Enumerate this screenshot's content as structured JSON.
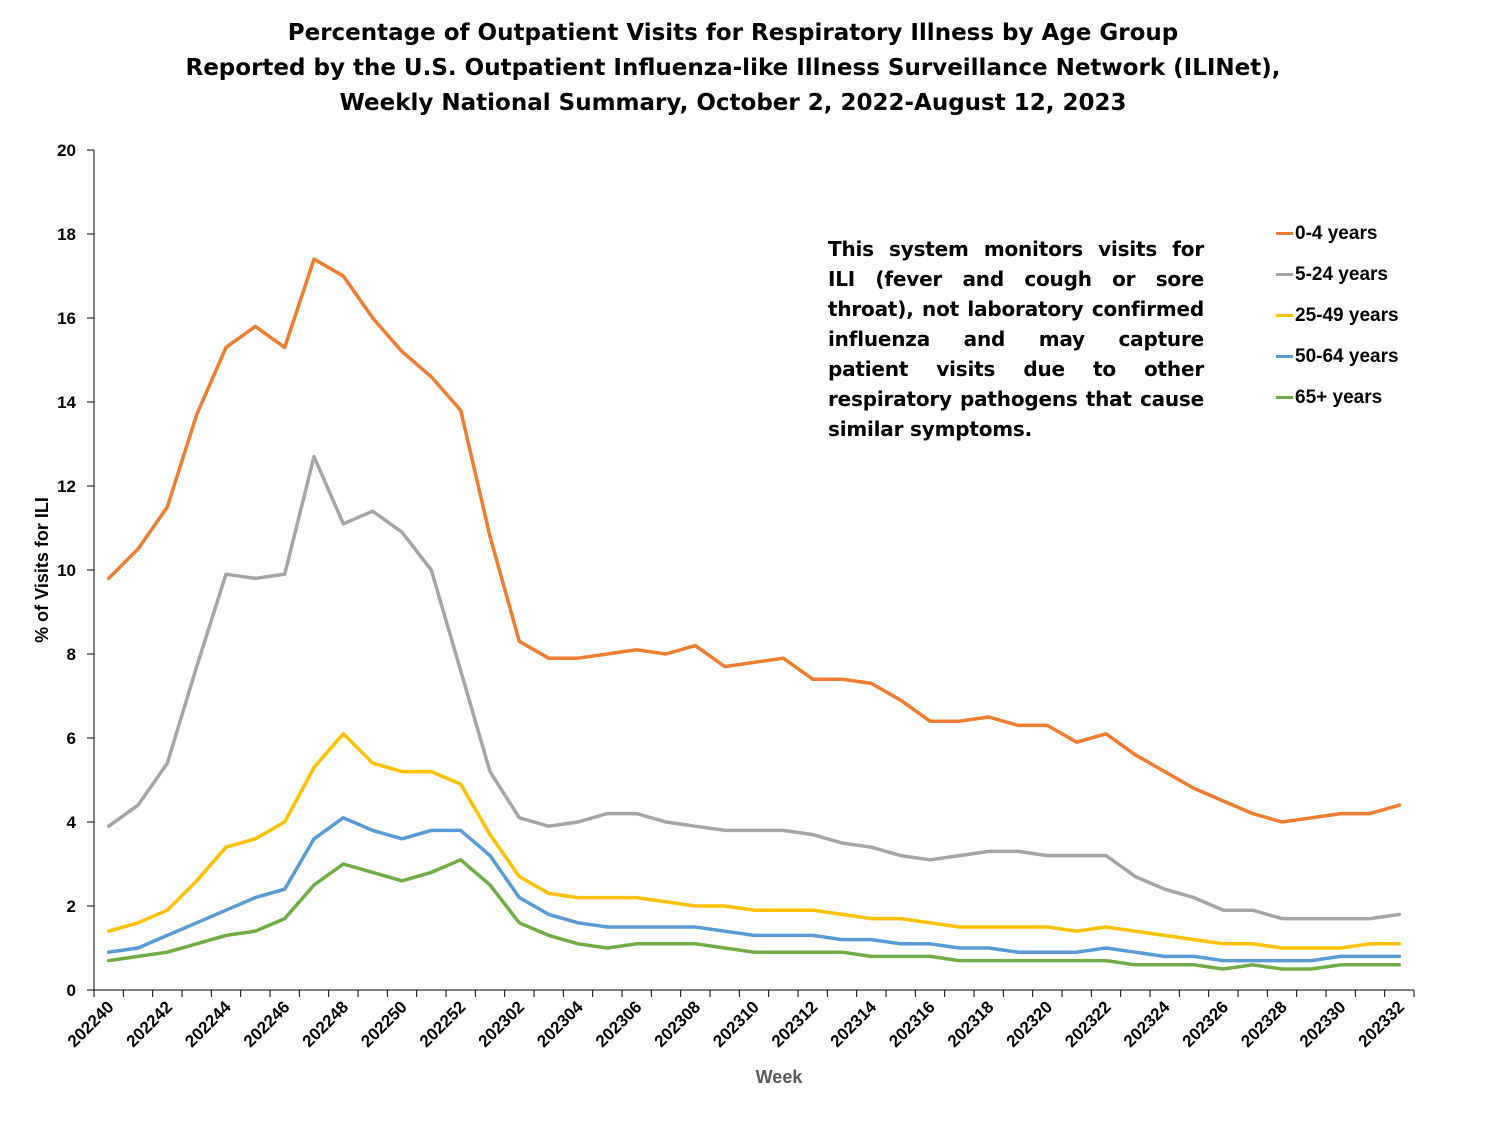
{
  "chart_data": {
    "type": "line",
    "title": [
      "Percentage of Outpatient Visits for Respiratory Illness by Age Group",
      "Reported by the U.S. Outpatient Influenza-like Illness Surveillance Network (ILINet),",
      "Weekly National Summary, October 2, 2022-August 12, 2023"
    ],
    "xlabel": "Week",
    "ylabel": "% of Visits for ILI",
    "ylim": [
      0,
      20
    ],
    "yticks": [
      0,
      2,
      4,
      6,
      8,
      10,
      12,
      14,
      16,
      18,
      20
    ],
    "x_tick_labels": [
      "202240",
      "202242",
      "202244",
      "202246",
      "202248",
      "202250",
      "202252",
      "202302",
      "202304",
      "202306",
      "202308",
      "202310",
      "202312",
      "202314",
      "202316",
      "202318",
      "202320",
      "202322",
      "202324",
      "202326",
      "202328",
      "202330",
      "202332"
    ],
    "weeks": [
      "202240",
      "202241",
      "202242",
      "202243",
      "202244",
      "202245",
      "202246",
      "202247",
      "202248",
      "202249",
      "202250",
      "202251",
      "202252",
      "202301",
      "202302",
      "202303",
      "202304",
      "202305",
      "202306",
      "202307",
      "202308",
      "202309",
      "202310",
      "202311",
      "202312",
      "202313",
      "202314",
      "202315",
      "202316",
      "202317",
      "202318",
      "202319",
      "202320",
      "202321",
      "202322",
      "202323",
      "202324",
      "202325",
      "202326",
      "202327",
      "202328",
      "202329",
      "202330",
      "202331",
      "202332"
    ],
    "annotation": "This system monitors visits for ILI (fever and cough or sore throat), not laboratory confirmed influenza and may capture patient visits due to other respiratory pathogens that cause similar symptoms.",
    "legend_position": "top-right",
    "grid": false,
    "series": [
      {
        "name": "0-4 years",
        "color": "#ED7D31",
        "values": [
          9.8,
          10.5,
          11.5,
          13.7,
          15.3,
          15.8,
          15.3,
          17.4,
          17.0,
          16.0,
          15.2,
          14.6,
          13.8,
          10.8,
          8.3,
          7.9,
          7.9,
          8.0,
          8.1,
          8.0,
          8.2,
          7.7,
          7.8,
          7.9,
          7.4,
          7.4,
          7.3,
          6.9,
          6.4,
          6.4,
          6.5,
          6.3,
          6.3,
          5.9,
          6.1,
          5.6,
          5.2,
          4.8,
          4.5,
          4.2,
          4.0,
          4.1,
          4.2,
          4.2,
          4.4
        ]
      },
      {
        "name": "5-24 years",
        "color": "#A5A5A5",
        "values": [
          3.9,
          4.4,
          5.4,
          7.7,
          9.9,
          9.8,
          9.9,
          12.7,
          11.1,
          11.4,
          10.9,
          10.0,
          7.6,
          5.2,
          4.1,
          3.9,
          4.0,
          4.2,
          4.2,
          4.0,
          3.9,
          3.8,
          3.8,
          3.8,
          3.7,
          3.5,
          3.4,
          3.2,
          3.1,
          3.2,
          3.3,
          3.3,
          3.2,
          3.2,
          3.2,
          2.7,
          2.4,
          2.2,
          1.9,
          1.9,
          1.7,
          1.7,
          1.7,
          1.7,
          1.8
        ]
      },
      {
        "name": "25-49 years",
        "color": "#FFC000",
        "values": [
          1.4,
          1.6,
          1.9,
          2.6,
          3.4,
          3.6,
          4.0,
          5.3,
          6.1,
          5.4,
          5.2,
          5.2,
          4.9,
          3.7,
          2.7,
          2.3,
          2.2,
          2.2,
          2.2,
          2.1,
          2.0,
          2.0,
          1.9,
          1.9,
          1.9,
          1.8,
          1.7,
          1.7,
          1.6,
          1.5,
          1.5,
          1.5,
          1.5,
          1.4,
          1.5,
          1.4,
          1.3,
          1.2,
          1.1,
          1.1,
          1.0,
          1.0,
          1.0,
          1.1,
          1.1
        ]
      },
      {
        "name": "50-64 years",
        "color": "#5B9BD5",
        "values": [
          0.9,
          1.0,
          1.3,
          1.6,
          1.9,
          2.2,
          2.4,
          3.6,
          4.1,
          3.8,
          3.6,
          3.8,
          3.8,
          3.2,
          2.2,
          1.8,
          1.6,
          1.5,
          1.5,
          1.5,
          1.5,
          1.4,
          1.3,
          1.3,
          1.3,
          1.2,
          1.2,
          1.1,
          1.1,
          1.0,
          1.0,
          0.9,
          0.9,
          0.9,
          1.0,
          0.9,
          0.8,
          0.8,
          0.7,
          0.7,
          0.7,
          0.7,
          0.8,
          0.8,
          0.8
        ]
      },
      {
        "name": "65+ years",
        "color": "#70AD47",
        "values": [
          0.7,
          0.8,
          0.9,
          1.1,
          1.3,
          1.4,
          1.7,
          2.5,
          3.0,
          2.8,
          2.6,
          2.8,
          3.1,
          2.5,
          1.6,
          1.3,
          1.1,
          1.0,
          1.1,
          1.1,
          1.1,
          1.0,
          0.9,
          0.9,
          0.9,
          0.9,
          0.8,
          0.8,
          0.8,
          0.7,
          0.7,
          0.7,
          0.7,
          0.7,
          0.7,
          0.6,
          0.6,
          0.6,
          0.5,
          0.6,
          0.5,
          0.5,
          0.6,
          0.6,
          0.6
        ]
      }
    ]
  }
}
